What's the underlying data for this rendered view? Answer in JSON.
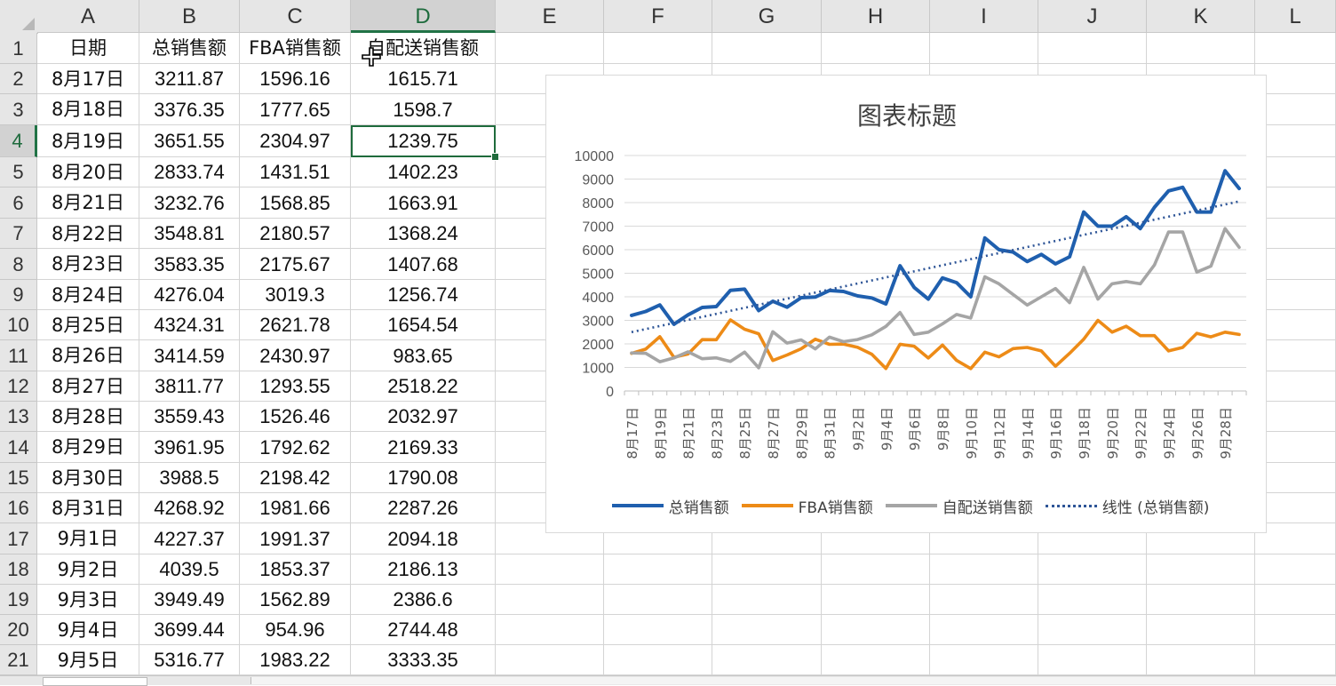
{
  "sheet": {
    "columns": [
      "A",
      "B",
      "C",
      "D",
      "E",
      "F",
      "G",
      "H",
      "I",
      "J",
      "K",
      "L"
    ],
    "selected_column": "D",
    "selected_row": 4,
    "header_row": [
      "日期",
      "总销售额",
      "FBA销售额",
      "自配送销售额"
    ],
    "rows": [
      [
        "8月17日",
        "3211.87",
        "1596.16",
        "1615.71"
      ],
      [
        "8月18日",
        "3376.35",
        "1777.65",
        "1598.7"
      ],
      [
        "8月19日",
        "3651.55",
        "2304.97",
        "1239.75"
      ],
      [
        "8月20日",
        "2833.74",
        "1431.51",
        "1402.23"
      ],
      [
        "8月21日",
        "3232.76",
        "1568.85",
        "1663.91"
      ],
      [
        "8月22日",
        "3548.81",
        "2180.57",
        "1368.24"
      ],
      [
        "8月23日",
        "3583.35",
        "2175.67",
        "1407.68"
      ],
      [
        "8月24日",
        "4276.04",
        "3019.3",
        "1256.74"
      ],
      [
        "8月25日",
        "4324.31",
        "2621.78",
        "1654.54"
      ],
      [
        "8月26日",
        "3414.59",
        "2430.97",
        "983.65"
      ],
      [
        "8月27日",
        "3811.77",
        "1293.55",
        "2518.22"
      ],
      [
        "8月28日",
        "3559.43",
        "1526.46",
        "2032.97"
      ],
      [
        "8月29日",
        "3961.95",
        "1792.62",
        "2169.33"
      ],
      [
        "8月30日",
        "3988.5",
        "2198.42",
        "1790.08"
      ],
      [
        "8月31日",
        "4268.92",
        "1981.66",
        "2287.26"
      ],
      [
        "9月1日",
        "4227.37",
        "1991.37",
        "2094.18"
      ],
      [
        "9月2日",
        "4039.5",
        "1853.37",
        "2186.13"
      ],
      [
        "9月3日",
        "3949.49",
        "1562.89",
        "2386.6"
      ],
      [
        "9月4日",
        "3699.44",
        "954.96",
        "2744.48"
      ],
      [
        "9月5日",
        "5316.77",
        "1983.22",
        "3333.35"
      ]
    ]
  },
  "chart_data": {
    "type": "line",
    "title": "图表标题",
    "xlabel": "",
    "ylabel": "",
    "ylim": [
      0,
      10000
    ],
    "yticks": [
      0,
      1000,
      2000,
      3000,
      4000,
      5000,
      6000,
      7000,
      8000,
      9000,
      10000
    ],
    "grid": true,
    "legend": "bottom",
    "x": [
      "8月17日",
      "8月18日",
      "8月19日",
      "8月20日",
      "8月21日",
      "8月22日",
      "8月23日",
      "8月24日",
      "8月25日",
      "8月26日",
      "8月27日",
      "8月28日",
      "8月29日",
      "8月30日",
      "8月31日",
      "9月1日",
      "9月2日",
      "9月3日",
      "9月4日",
      "9月5日",
      "9月6日",
      "9月7日",
      "9月8日",
      "9月9日",
      "9月10日",
      "9月11日",
      "9月12日",
      "9月13日",
      "9月14日",
      "9月15日",
      "9月16日",
      "9月17日",
      "9月18日",
      "9月19日",
      "9月20日",
      "9月21日",
      "9月22日",
      "9月23日",
      "9月24日",
      "9月25日",
      "9月26日",
      "9月27日",
      "9月28日",
      "9月29日"
    ],
    "tick_labels": [
      "8月17日",
      "8月19日",
      "8月21日",
      "8月23日",
      "8月25日",
      "8月27日",
      "8月29日",
      "8月31日",
      "9月2日",
      "9月4日",
      "9月6日",
      "9月8日",
      "9月10日",
      "9月12日",
      "9月14日",
      "9月16日",
      "9月18日",
      "9月20日",
      "9月22日",
      "9月24日",
      "9月26日",
      "9月28日"
    ],
    "series": [
      {
        "name": "总销售额",
        "color": "#1f5fae",
        "values": [
          3211.87,
          3376.35,
          3651.55,
          2833.74,
          3232.76,
          3548.81,
          3583.35,
          4276.04,
          4324.31,
          3414.59,
          3811.77,
          3559.43,
          3961.95,
          3988.5,
          4268.92,
          4227.37,
          4039.5,
          3949.49,
          3699.44,
          5316.77,
          4400,
          3900,
          4800,
          4600,
          4000,
          6500,
          6000,
          5900,
          5500,
          5800,
          5400,
          5700,
          7600,
          7000,
          7000,
          7400,
          6900,
          7800,
          8500,
          8650,
          7600,
          7600,
          9350,
          8600
        ]
      },
      {
        "name": "FBA销售额",
        "color": "#ed8b17",
        "values": [
          1596.16,
          1777.65,
          2304.97,
          1431.51,
          1568.85,
          2180.57,
          2175.67,
          3019.3,
          2621.78,
          2430.97,
          1293.55,
          1526.46,
          1792.62,
          2198.42,
          1981.66,
          1991.37,
          1853.37,
          1562.89,
          954.96,
          1983.22,
          1900,
          1400,
          1950,
          1300,
          950,
          1650,
          1450,
          1800,
          1850,
          1700,
          1050,
          1600,
          2200,
          3000,
          2500,
          2750,
          2350,
          2350,
          1700,
          1850,
          2450,
          2300,
          2500,
          2400
        ]
      },
      {
        "name": "自配送销售额",
        "color": "#a5a5a5",
        "values": [
          1615.71,
          1598.7,
          1239.75,
          1402.23,
          1663.91,
          1368.24,
          1407.68,
          1256.74,
          1654.54,
          983.65,
          2518.22,
          2032.97,
          2169.33,
          1790.08,
          2287.26,
          2094.18,
          2186.13,
          2386.6,
          2744.48,
          3333.35,
          2400,
          2500,
          2850,
          3250,
          3100,
          4850,
          4550,
          4100,
          3650,
          4000,
          4350,
          3750,
          5250,
          3900,
          4550,
          4650,
          4550,
          5350,
          6750,
          6750,
          5050,
          5300,
          6900,
          6100
        ]
      }
    ],
    "trendline": {
      "name": "线性 (总销售额)",
      "color": "#2e5597",
      "start": 2500,
      "end": 8050
    }
  }
}
